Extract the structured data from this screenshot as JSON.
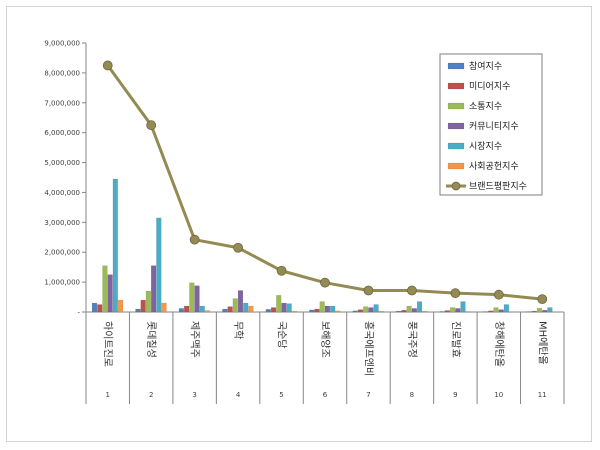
{
  "chart_data": {
    "type": "bar",
    "title": "",
    "xlabel": "",
    "ylabel": "",
    "ylim": [
      0,
      9000000
    ],
    "ytick_step": 1000000,
    "y_tick_labels": [
      "-",
      "1,000,000",
      "2,000,000",
      "3,000,000",
      "4,000,000",
      "5,000,000",
      "6,000,000",
      "7,000,000",
      "8,000,000",
      "9,000,000"
    ],
    "grid": false,
    "legend_position": "top-right",
    "categories": [
      "하이트진로",
      "롯데칠성",
      "제주맥주",
      "무학",
      "국순당",
      "보해양조",
      "흥국에프엔비",
      "풍국주정",
      "진로발효",
      "창해에탄올",
      "MH에탄올"
    ],
    "category_numbers": [
      "1",
      "2",
      "3",
      "4",
      "5",
      "6",
      "7",
      "8",
      "9",
      "10",
      "11"
    ],
    "series": [
      {
        "name": "참여지수",
        "type": "bar",
        "color": "#4f81bd",
        "values": [
          300000,
          100000,
          120000,
          100000,
          90000,
          70000,
          40000,
          30000,
          20000,
          15000,
          15000
        ]
      },
      {
        "name": "미디어지수",
        "type": "bar",
        "color": "#c0504d",
        "values": [
          250000,
          400000,
          200000,
          180000,
          150000,
          100000,
          80000,
          60000,
          50000,
          40000,
          30000
        ]
      },
      {
        "name": "소통지수",
        "type": "bar",
        "color": "#9bbb59",
        "values": [
          1550000,
          700000,
          980000,
          450000,
          560000,
          350000,
          180000,
          200000,
          150000,
          150000,
          130000
        ]
      },
      {
        "name": "커뮤니티지수",
        "type": "bar",
        "color": "#8064a2",
        "values": [
          1250000,
          1550000,
          880000,
          720000,
          300000,
          200000,
          150000,
          120000,
          120000,
          80000,
          60000
        ]
      },
      {
        "name": "시장지수",
        "type": "bar",
        "color": "#4bacc6",
        "values": [
          4450000,
          3150000,
          200000,
          300000,
          280000,
          200000,
          250000,
          350000,
          350000,
          250000,
          150000
        ]
      },
      {
        "name": "사회공헌지수",
        "type": "bar",
        "color": "#f79646",
        "values": [
          400000,
          300000,
          50000,
          200000,
          30000,
          40000,
          30000,
          30000,
          20000,
          10000,
          10000
        ]
      },
      {
        "name": "브랜드평판지수",
        "type": "line",
        "color": "#948a54",
        "values": [
          8250000,
          6250000,
          2420000,
          2150000,
          1380000,
          980000,
          720000,
          720000,
          630000,
          580000,
          430000
        ]
      }
    ]
  }
}
